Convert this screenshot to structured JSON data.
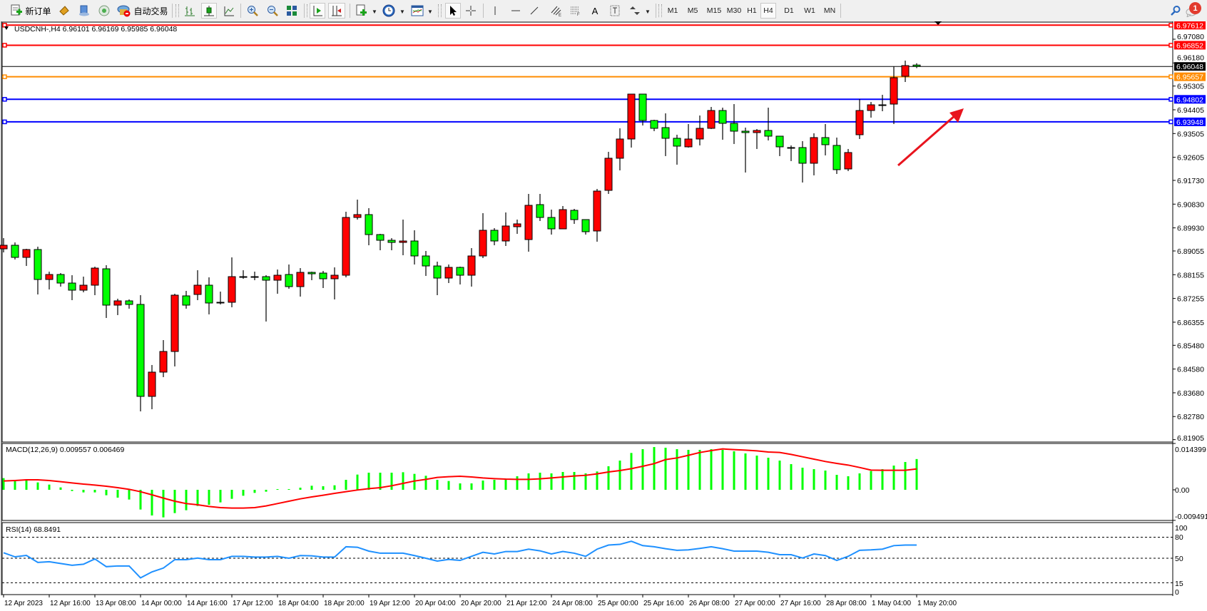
{
  "toolbar": {
    "new_order_label": "新订单",
    "auto_trading_label": "自动交易",
    "timeframes": [
      "M1",
      "M5",
      "M15",
      "M30",
      "H1",
      "H4",
      "D1",
      "W1",
      "MN"
    ],
    "active_timeframe": "H4",
    "notification_count": "1",
    "icons": [
      "new-order-icon",
      "market-watch-icon",
      "navigator-icon",
      "signals-icon",
      "auto-trading-icon",
      "bar-chart-icon",
      "candlestick-icon",
      "line-chart-icon",
      "zoom-in-icon",
      "zoom-out-icon",
      "tile-windows-icon",
      "auto-scroll-icon",
      "chart-shift-icon",
      "indicators-icon",
      "periods-icon",
      "templates-icon",
      "cursor-icon",
      "crosshair-icon",
      "vertical-line-icon",
      "horizontal-line-icon",
      "trendline-icon",
      "equidistant-channel-icon",
      "fibonacci-icon",
      "text-icon",
      "text-label-icon",
      "arrows-icon",
      "search-icon",
      "notification-icon"
    ]
  },
  "chart_header": "USDCNH-,H4  6.96101 6.96169 6.95985 6.96048",
  "colors": {
    "bull": "#ff0000",
    "bear": "#00ff00",
    "macd_hist": "#00ff00",
    "macd_signal": "#ff0000",
    "rsi": "#1e90ff",
    "resistance": "#ff0000",
    "pivot": "#ff8c00",
    "support": "#0000ff",
    "current": "#000000",
    "arrow": "#e8141e"
  },
  "chart_data": [
    {
      "type": "candlestick",
      "symbol": "USDCNH-",
      "timeframe": "H4",
      "ylim": [
        6.81905,
        6.97612
      ],
      "y_ticks": [
        "6.97080",
        "6.96180",
        "6.95305",
        "6.94405",
        "6.93505",
        "6.92605",
        "6.91730",
        "6.90830",
        "6.89930",
        "6.89055",
        "6.88155",
        "6.87255",
        "6.86355",
        "6.85480",
        "6.84580",
        "6.83680",
        "6.82780",
        "6.81905"
      ],
      "x_tick_labels": [
        "12 Apr 2023",
        "12 Apr 16:00",
        "13 Apr 08:00",
        "14 Apr 00:00",
        "14 Apr 16:00",
        "17 Apr 12:00",
        "18 Apr 04:00",
        "18 Apr 20:00",
        "19 Apr 12:00",
        "20 Apr 04:00",
        "20 Apr 20:00",
        "21 Apr 12:00",
        "24 Apr 08:00",
        "25 Apr 00:00",
        "25 Apr 16:00",
        "26 Apr 08:00",
        "27 Apr 00:00",
        "27 Apr 16:00",
        "28 Apr 08:00",
        "1 May 04:00",
        "1 May 20:00"
      ],
      "ohlc": [
        [
          6.89136,
          6.89541,
          6.89001,
          6.89271
        ],
        [
          6.89271,
          6.89379,
          6.88731,
          6.88812
        ],
        [
          6.88812,
          6.89136,
          6.88487,
          6.89109
        ],
        [
          6.89109,
          6.89217,
          6.87407,
          6.87974
        ],
        [
          6.87974,
          6.88271,
          6.87596,
          6.88163
        ],
        [
          6.88163,
          6.88217,
          6.87704,
          6.87839
        ],
        [
          6.87839,
          6.88136,
          6.87191,
          6.87569
        ],
        [
          6.87569,
          6.88082,
          6.87488,
          6.87758
        ],
        [
          6.87758,
          6.8846,
          6.8738,
          6.88406
        ],
        [
          6.88379,
          6.88515,
          6.86516,
          6.87002
        ],
        [
          6.87002,
          6.87245,
          6.86624,
          6.87164
        ],
        [
          6.87164,
          6.87218,
          6.86867,
          6.87029
        ],
        [
          6.87029,
          6.8738,
          6.82977,
          6.83544
        ],
        [
          6.83544,
          6.84733,
          6.83058,
          6.84463
        ],
        [
          6.84463,
          6.85678,
          6.84274,
          6.85246
        ],
        [
          6.85246,
          6.87434,
          6.84679,
          6.8738
        ],
        [
          6.87353,
          6.87542,
          6.86867,
          6.87002
        ],
        [
          6.87407,
          6.88325,
          6.87191,
          6.87758
        ],
        [
          6.87758,
          6.88055,
          6.86651,
          6.87083
        ],
        [
          6.87083,
          6.87515,
          6.87029,
          6.8711
        ],
        [
          6.8711,
          6.88812,
          6.86921,
          6.88082
        ],
        [
          6.88082,
          6.88325,
          6.88001,
          6.88082
        ],
        [
          6.88082,
          6.88271,
          6.87947,
          6.88082
        ],
        [
          6.88082,
          6.88136,
          6.86381,
          6.87947
        ],
        [
          6.87947,
          6.88352,
          6.87434,
          6.88136
        ],
        [
          6.88163,
          6.88542,
          6.87623,
          6.87704
        ],
        [
          6.87704,
          6.88406,
          6.87326,
          6.88244
        ],
        [
          6.88244,
          6.88271,
          6.87947,
          6.8819
        ],
        [
          6.88217,
          6.88298,
          6.8765,
          6.88001
        ],
        [
          6.88001,
          6.88433,
          6.87218,
          6.88136
        ],
        [
          6.88136,
          6.90541,
          6.88055,
          6.90325
        ],
        [
          6.90325,
          6.91001,
          6.90244,
          6.90433
        ],
        [
          6.90433,
          6.90676,
          6.89271,
          6.89676
        ],
        [
          6.89676,
          6.89703,
          6.89082,
          6.8946
        ],
        [
          6.8946,
          6.89541,
          6.89082,
          6.89379
        ],
        [
          6.89379,
          6.90244,
          6.88893,
          6.89433
        ],
        [
          6.89433,
          6.89839,
          6.88542,
          6.88866
        ],
        [
          6.88866,
          6.89055,
          6.88109,
          6.88487
        ],
        [
          6.88487,
          6.8865,
          6.8738,
          6.88028
        ],
        [
          6.88028,
          6.88542,
          6.87839,
          6.88433
        ],
        [
          6.88433,
          6.8846,
          6.87785,
          6.88136
        ],
        [
          6.88136,
          6.89163,
          6.87704,
          6.88866
        ],
        [
          6.88866,
          6.90487,
          6.88785,
          6.89839
        ],
        [
          6.89839,
          6.8992,
          6.89271,
          6.89433
        ],
        [
          6.89433,
          6.90514,
          6.89244,
          6.90001
        ],
        [
          6.89974,
          6.90244,
          6.89703,
          6.90082
        ],
        [
          6.89487,
          6.91217,
          6.89028,
          6.90785
        ],
        [
          6.90812,
          6.91217,
          6.9019,
          6.90325
        ],
        [
          6.90325,
          6.90622,
          6.89676,
          6.89893
        ],
        [
          6.89893,
          6.90758,
          6.89893,
          6.90622
        ],
        [
          6.90595,
          6.90649,
          6.90082,
          6.90244
        ],
        [
          6.90244,
          6.90244,
          6.89676,
          6.89785
        ],
        [
          6.89812,
          6.91406,
          6.89406,
          6.91325
        ],
        [
          6.91352,
          6.92812,
          6.91217,
          6.92569
        ],
        [
          6.92569,
          6.93703,
          6.92109,
          6.93298
        ],
        [
          6.93298,
          6.95,
          6.92974,
          6.95
        ],
        [
          6.95,
          6.95,
          6.93811,
          6.94
        ],
        [
          6.94,
          6.94027,
          6.93595,
          6.93703
        ],
        [
          6.9373,
          6.9427,
          6.9265,
          6.93325
        ],
        [
          6.93325,
          6.9346,
          6.92325,
          6.93028
        ],
        [
          6.93001,
          6.93865,
          6.92974,
          6.93298
        ],
        [
          6.93298,
          6.94189,
          6.93055,
          6.93703
        ],
        [
          6.93703,
          6.94513,
          6.93676,
          6.94378
        ],
        [
          6.94378,
          6.94486,
          6.93271,
          6.93892
        ],
        [
          6.93892,
          6.94621,
          6.93109,
          6.93595
        ],
        [
          6.93595,
          6.9373,
          6.92028,
          6.93541
        ],
        [
          6.93541,
          6.93676,
          6.9292,
          6.93622
        ],
        [
          6.93622,
          6.94486,
          6.93244,
          6.93406
        ],
        [
          6.93406,
          6.93406,
          6.9265,
          6.93001
        ],
        [
          6.92974,
          6.93055,
          6.92461,
          6.92974
        ],
        [
          6.92974,
          6.93217,
          6.91649,
          6.92379
        ],
        [
          6.92379,
          6.93514,
          6.9192,
          6.93352
        ],
        [
          6.93352,
          6.93865,
          6.92677,
          6.93082
        ],
        [
          6.93055,
          6.93352,
          6.91974,
          6.92136
        ],
        [
          6.92163,
          6.9292,
          6.92082,
          6.92785
        ],
        [
          6.9346,
          6.9481,
          6.93298,
          6.94378
        ],
        [
          6.94378,
          6.94702,
          6.94108,
          6.94594
        ],
        [
          6.94594,
          6.94973,
          6.94351,
          6.94594
        ],
        [
          6.94621,
          6.96053,
          6.93865,
          6.95621
        ],
        [
          6.95675,
          6.96269,
          6.95459,
          6.9608
        ],
        [
          6.96101,
          6.96169,
          6.95985,
          6.96048
        ]
      ],
      "horizontal_lines": [
        {
          "price": "6.97612",
          "role": "resistance"
        },
        {
          "price": "6.96852",
          "role": "resistance"
        },
        {
          "price": "6.96048",
          "role": "current"
        },
        {
          "price": "6.95657",
          "role": "pivot"
        },
        {
          "price": "6.94802",
          "role": "support"
        },
        {
          "price": "6.93948",
          "role": "support"
        }
      ],
      "annotation": "red arrow pointing up-right"
    },
    {
      "type": "bar+line",
      "title": "MACD(12,26,9) 0.009557 0.006469",
      "ylim": [
        -0.009491,
        0.014399
      ],
      "y_ticks": [
        "0.014399",
        "0.00",
        "-0.009491"
      ],
      "histogram": [
        0.00362,
        0.0031,
        0.00288,
        0.00229,
        0.00162,
        0.00074,
        -0.00037,
        -0.00081,
        -0.00081,
        -0.0017,
        -0.00244,
        -0.00303,
        -0.00613,
        -0.00798,
        -0.00857,
        -0.00724,
        -0.00635,
        -0.00502,
        -0.00465,
        -0.00391,
        -0.00281,
        -0.00185,
        -0.00096,
        -0.00059,
        0.00022,
        0.00022,
        0.00066,
        0.00126,
        0.00111,
        0.0014,
        0.0031,
        0.00473,
        0.00532,
        0.00532,
        0.00532,
        0.00546,
        0.00495,
        0.00436,
        0.0031,
        0.00273,
        0.00199,
        0.00199,
        0.00288,
        0.0031,
        0.00347,
        0.00421,
        0.0051,
        0.00532,
        0.0051,
        0.00554,
        0.00554,
        0.0051,
        0.00569,
        0.00731,
        0.00908,
        0.01145,
        0.01263,
        0.01329,
        0.01307,
        0.01263,
        0.01241,
        0.01241,
        0.01263,
        0.01241,
        0.01196,
        0.0113,
        0.01063,
        0.00997,
        0.00908,
        0.00798,
        0.00687,
        0.00642,
        0.00598,
        0.00465,
        0.00421,
        0.0051,
        0.00583,
        0.00642,
        0.00753,
        0.00864,
        0.009557
      ],
      "signal": [
        0.00273,
        0.00288,
        0.0031,
        0.0031,
        0.00288,
        0.00251,
        0.00214,
        0.00177,
        0.00148,
        0.00111,
        0.00066,
        0.00015,
        -0.00059,
        -0.00155,
        -0.00258,
        -0.00354,
        -0.00428,
        -0.00465,
        -0.00517,
        -0.00554,
        -0.00569,
        -0.00569,
        -0.00554,
        -0.00502,
        -0.00428,
        -0.00354,
        -0.00281,
        -0.00222,
        -0.0017,
        -0.00111,
        -0.00059,
        -7e-05,
        0.00037,
        0.00066,
        0.00126,
        0.00199,
        0.00273,
        0.00325,
        0.00384,
        0.00406,
        0.00421,
        0.00399,
        0.00369,
        0.00347,
        0.00332,
        0.00325,
        0.00325,
        0.0034,
        0.00369,
        0.00399,
        0.00428,
        0.0045,
        0.00495,
        0.00554,
        0.00598,
        0.00657,
        0.00731,
        0.00812,
        0.00938,
        0.0099,
        0.01071,
        0.01159,
        0.01218,
        0.0127,
        0.01248,
        0.01233,
        0.01211,
        0.01174,
        0.01159,
        0.011,
        0.01026,
        0.00953,
        0.00879,
        0.0082,
        0.00768,
        0.00694,
        0.00613,
        0.00606,
        0.00606,
        0.00606,
        0.006469
      ]
    },
    {
      "type": "line",
      "title": "RSI(14) 68.8491",
      "ylim": [
        0,
        100
      ],
      "y_ticks": [
        "100",
        "80",
        "50",
        "15",
        "0"
      ],
      "levels": [
        80,
        50,
        15
      ],
      "values": [
        57.8,
        52,
        54,
        44,
        45,
        42.5,
        40,
        41.5,
        49,
        38,
        39,
        39,
        22,
        30.5,
        36,
        48,
        48,
        50.3,
        48,
        48,
        52.7,
        52.7,
        51.7,
        51.7,
        52.7,
        50,
        53.8,
        53.4,
        51.7,
        51.7,
        66.4,
        65.7,
        60.2,
        57.2,
        57.2,
        57.2,
        53.8,
        50,
        45.9,
        48.3,
        46.9,
        52.7,
        58.5,
        56.1,
        59.6,
        59.6,
        63,
        60.6,
        56.1,
        59.6,
        57.2,
        52.7,
        63,
        68.8,
        69.8,
        74.2,
        68,
        66.4,
        63.6,
        61.3,
        61.9,
        64,
        66.4,
        63.6,
        60.2,
        60.2,
        60.2,
        58.5,
        55.1,
        55.1,
        50.3,
        56.1,
        53.8,
        46.9,
        52.7,
        61.3,
        61.9,
        63,
        68,
        68.8,
        68.8491
      ]
    }
  ]
}
